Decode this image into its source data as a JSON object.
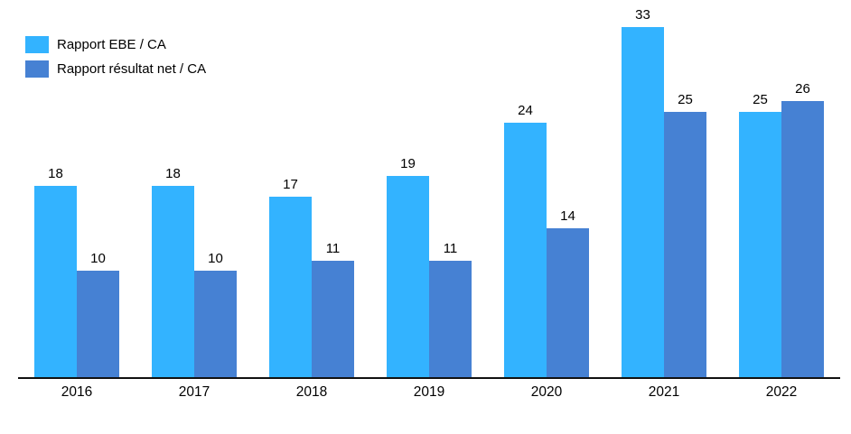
{
  "chart_data": {
    "type": "bar",
    "categories": [
      "2016",
      "2017",
      "2018",
      "2019",
      "2020",
      "2021",
      "2022"
    ],
    "series": [
      {
        "name": "Rapport EBE / CA",
        "color": "#33B3FF",
        "values": [
          18,
          18,
          17,
          19,
          24,
          33,
          25
        ]
      },
      {
        "name": "Rapport résultat net / CA",
        "color": "#4681D3",
        "values": [
          10,
          10,
          11,
          11,
          14,
          25,
          26
        ]
      }
    ],
    "title": "",
    "xlabel": "",
    "ylabel": "",
    "ylim": [
      0,
      33
    ],
    "grid": false,
    "legend_position": "top-left",
    "value_labels": true
  },
  "legend": {
    "items": [
      {
        "label": "Rapport EBE / CA",
        "color": "#33B3FF"
      },
      {
        "label": "Rapport résultat net / CA",
        "color": "#4681D3"
      }
    ]
  }
}
